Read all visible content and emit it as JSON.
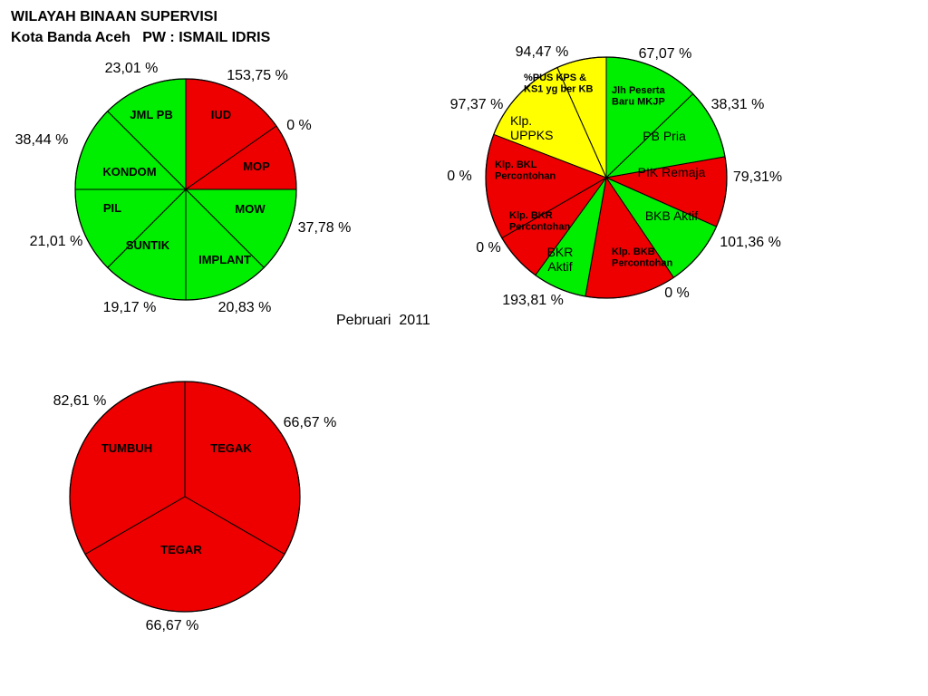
{
  "header": {
    "line1": "WILAYAH BINAAN SUPERVISI",
    "line2": "Kota Banda Aceh   PW : ISMAIL IDRIS"
  },
  "period": "Pebruari  2011",
  "colors": {
    "green": "#00ee00",
    "red": "#ee0000",
    "yellow": "#ffff00"
  },
  "chart_data": [
    {
      "type": "pie",
      "segments": [
        {
          "name": "IUD",
          "value": "153,75 %",
          "color": "red"
        },
        {
          "name": "MOP",
          "value": "0 %",
          "color": "red"
        },
        {
          "name": "MOW",
          "value": "37,78 %",
          "color": "green"
        },
        {
          "name": "IMPLANT",
          "value": "20,83 %",
          "color": "green"
        },
        {
          "name": "SUNTIK",
          "value": "19,17 %",
          "color": "green"
        },
        {
          "name": "PIL",
          "value": "21,01 %",
          "color": "green"
        },
        {
          "name": "KONDOM",
          "value": "38,44 %",
          "color": "green"
        },
        {
          "name": "JML PB",
          "value": "23,01 %",
          "color": "green"
        }
      ]
    },
    {
      "type": "pie",
      "segments": [
        {
          "name": "Jlh Peserta Baru MKJP",
          "value": "67,07 %",
          "color": "green"
        },
        {
          "name": "PB Pria",
          "value": "38,31 %",
          "color": "green"
        },
        {
          "name": "PIK Remaja",
          "value": "79,31%",
          "color": "red"
        },
        {
          "name": "BKB Aktif",
          "value": "101,36 %",
          "color": "green"
        },
        {
          "name": "Klp. BKB Percontohan",
          "value": "0 %",
          "color": "red"
        },
        {
          "name": "BKR Aktif",
          "value": "193,81 %",
          "color": "green"
        },
        {
          "name": "Klp. BKR Percontohan",
          "value": "0 %",
          "color": "red"
        },
        {
          "name": "Klp. BKL Percontohan",
          "value": "0 %",
          "color": "red"
        },
        {
          "name": "Klp. UPPKS",
          "value": "97,37 %",
          "color": "yellow"
        },
        {
          "name": "%PUS KPS & KS1 yg ber KB",
          "value": "94,47 %",
          "color": "yellow"
        }
      ]
    },
    {
      "type": "pie",
      "segments": [
        {
          "name": "TEGAK",
          "value": "66,67 %",
          "color": "red"
        },
        {
          "name": "TEGAR",
          "value": "66,67 %",
          "color": "red"
        },
        {
          "name": "TUMBUH",
          "value": "82,61 %",
          "color": "red"
        }
      ]
    }
  ]
}
